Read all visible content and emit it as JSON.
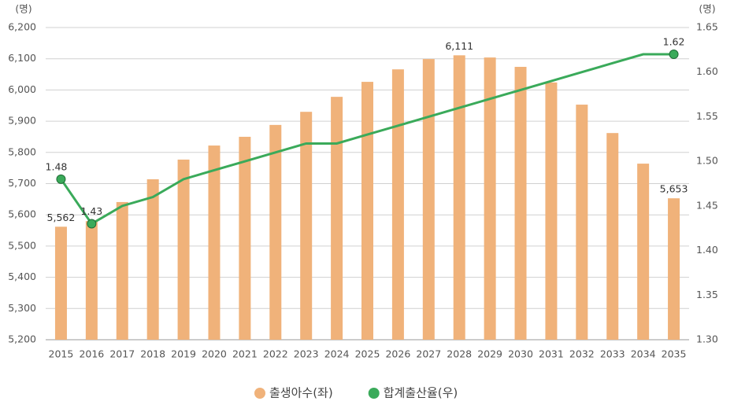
{
  "chart_data": {
    "type": "bar_line",
    "y_unit": "(명)",
    "y2_unit": "(명)",
    "categories": [
      "2015",
      "2016",
      "2017",
      "2018",
      "2019",
      "2020",
      "2021",
      "2022",
      "2023",
      "2024",
      "2025",
      "2026",
      "2027",
      "2028",
      "2029",
      "2030",
      "2031",
      "2032",
      "2033",
      "2034",
      "2035"
    ],
    "series": [
      {
        "name": "출생아수(좌)",
        "type": "bar",
        "color": "#f0b27a",
        "axis": "y",
        "values": [
          5562,
          5580,
          5641,
          5714,
          5777,
          5822,
          5850,
          5888,
          5930,
          5978,
          6026,
          6066,
          6099,
          6111,
          6104,
          6074,
          6024,
          5953,
          5862,
          5764,
          5653
        ],
        "value_labels": [
          "5,562",
          null,
          null,
          null,
          null,
          null,
          null,
          null,
          null,
          null,
          null,
          null,
          null,
          "6,111",
          null,
          null,
          null,
          null,
          null,
          null,
          "5,653"
        ]
      },
      {
        "name": "합계출산율(우)",
        "type": "line",
        "color": "#3aaa5a",
        "axis": "y2",
        "values": [
          1.48,
          1.43,
          1.45,
          1.46,
          1.48,
          1.49,
          1.5,
          1.51,
          1.52,
          1.52,
          1.53,
          1.54,
          1.55,
          1.56,
          1.57,
          1.58,
          1.59,
          1.6,
          1.61,
          1.62,
          1.62
        ],
        "value_labels": [
          "1.48",
          "1.43",
          null,
          null,
          null,
          null,
          null,
          null,
          null,
          null,
          null,
          null,
          null,
          null,
          null,
          null,
          null,
          null,
          null,
          null,
          "1.62"
        ]
      }
    ],
    "ylim": [
      5200,
      6200
    ],
    "yticks": [
      {
        "value": 5200,
        "label": "5,200"
      },
      {
        "value": 5300,
        "label": "5,300"
      },
      {
        "value": 5400,
        "label": "5,400"
      },
      {
        "value": 5500,
        "label": "5,500"
      },
      {
        "value": 5600,
        "label": "5,600"
      },
      {
        "value": 5700,
        "label": "5,700"
      },
      {
        "value": 5800,
        "label": "5,800"
      },
      {
        "value": 5900,
        "label": "5,900"
      },
      {
        "value": 6000,
        "label": "6,000"
      },
      {
        "value": 6100,
        "label": "6,100"
      },
      {
        "value": 6200,
        "label": "6,200"
      }
    ],
    "y2lim": [
      1.3,
      1.65
    ],
    "y2ticks": [
      {
        "value": 1.3,
        "label": "1.30"
      },
      1.35,
      {
        "value": 1.4,
        "label": "1.40"
      },
      1.45,
      {
        "value": 1.5,
        "label": "1.50"
      },
      1.55,
      {
        "value": 1.6,
        "label": "1.60"
      },
      1.65
    ],
    "grid": true,
    "legend": "bottom"
  }
}
